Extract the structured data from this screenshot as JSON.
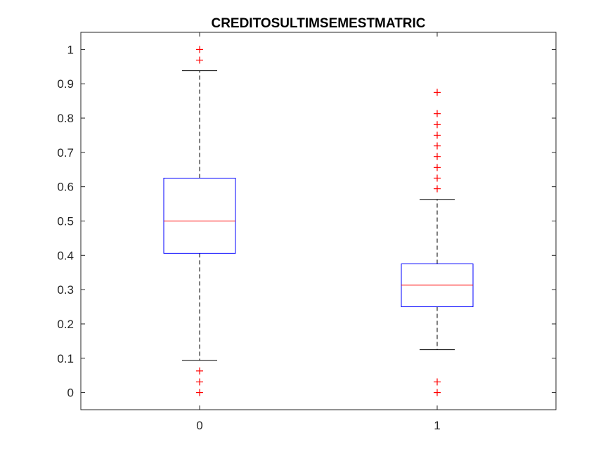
{
  "chart_data": {
    "type": "box",
    "title": "CREDITOSULTIMSEMESTMATRIC",
    "xlabel": "",
    "ylabel": "",
    "categories": [
      "0",
      "1"
    ],
    "ylim": [
      -0.05,
      1.05
    ],
    "yticks": [
      0,
      0.1,
      0.2,
      0.3,
      0.4,
      0.5,
      0.6,
      0.7,
      0.8,
      0.9,
      1
    ],
    "ytick_labels": [
      "0",
      "0.1",
      "0.2",
      "0.3",
      "0.4",
      "0.5",
      "0.6",
      "0.7",
      "0.8",
      "0.9",
      "1"
    ],
    "grid": false,
    "boxes": [
      {
        "category": "0",
        "whisker_low": 0.094,
        "q1": 0.406,
        "median": 0.5,
        "q3": 0.625,
        "whisker_high": 0.938,
        "outliers": [
          0,
          0.031,
          0.063,
          0.969,
          1.0
        ]
      },
      {
        "category": "1",
        "whisker_low": 0.125,
        "q1": 0.25,
        "median": 0.313,
        "q3": 0.375,
        "whisker_high": 0.563,
        "outliers": [
          0,
          0.031,
          0.594,
          0.625,
          0.656,
          0.688,
          0.719,
          0.75,
          0.781,
          0.813,
          0.875
        ]
      }
    ],
    "colors": {
      "box": "#0000ff",
      "median": "#ff0000",
      "whisker": "#000000",
      "outlier": "#ff0000",
      "axis": "#262626"
    }
  }
}
